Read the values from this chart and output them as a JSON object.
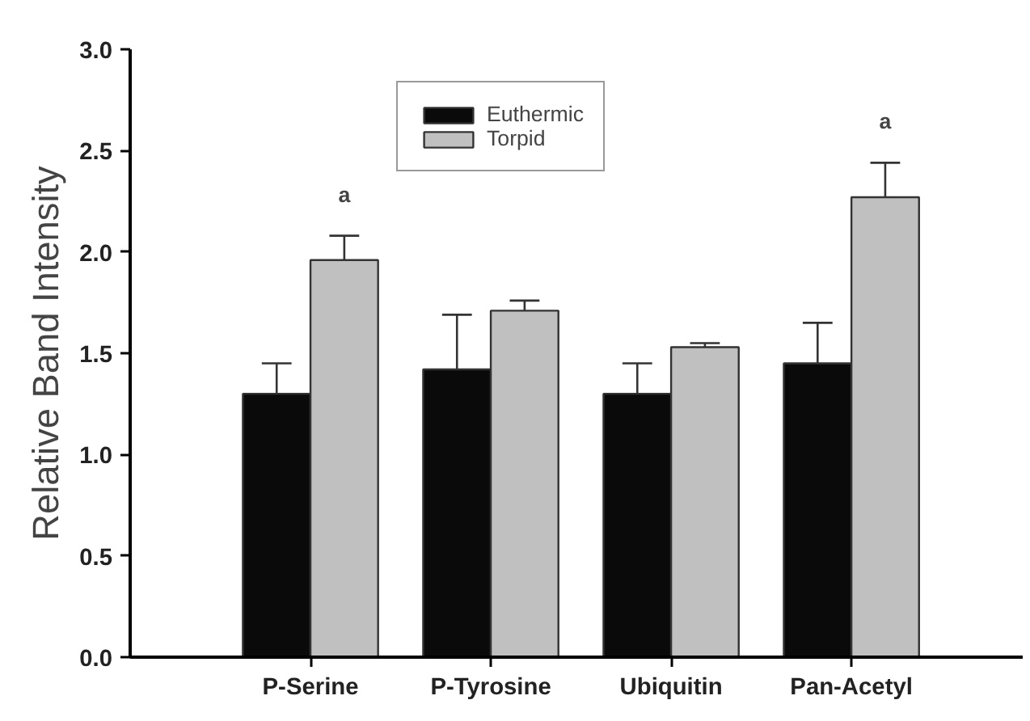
{
  "chart_data": {
    "type": "bar",
    "ylabel": "Relative Band Intensity",
    "categories": [
      "P-Serine",
      "P-Tyrosine",
      "Ubiquitin",
      "Pan-Acetyl"
    ],
    "series": [
      {
        "name": "Euthermic",
        "color": "#0a0a0a",
        "values": [
          1.3,
          1.42,
          1.3,
          1.45
        ],
        "errors": [
          [
            1.3,
            1.45
          ],
          [
            1.42,
            1.69
          ],
          [
            1.3,
            1.45
          ],
          [
            1.45,
            1.65
          ]
        ]
      },
      {
        "name": "Torpid",
        "color": "#c0c0c0",
        "values": [
          1.96,
          1.71,
          1.53,
          2.27
        ],
        "errors": [
          [
            1.96,
            2.08
          ],
          [
            1.71,
            1.76
          ],
          [
            1.53,
            1.55
          ],
          [
            2.27,
            2.44
          ]
        ],
        "value_labels": [
          "a",
          null,
          null,
          "a"
        ]
      }
    ],
    "ylim": [
      0,
      3.0
    ],
    "yticks": [
      {
        "value": 0,
        "label": "0.0"
      },
      0.5,
      {
        "value": 1,
        "label": "1.0"
      },
      1.5,
      {
        "value": 2,
        "label": "2.0"
      },
      2.5,
      {
        "value": 3,
        "label": "3.0"
      }
    ],
    "grid": false,
    "legend": "top"
  }
}
